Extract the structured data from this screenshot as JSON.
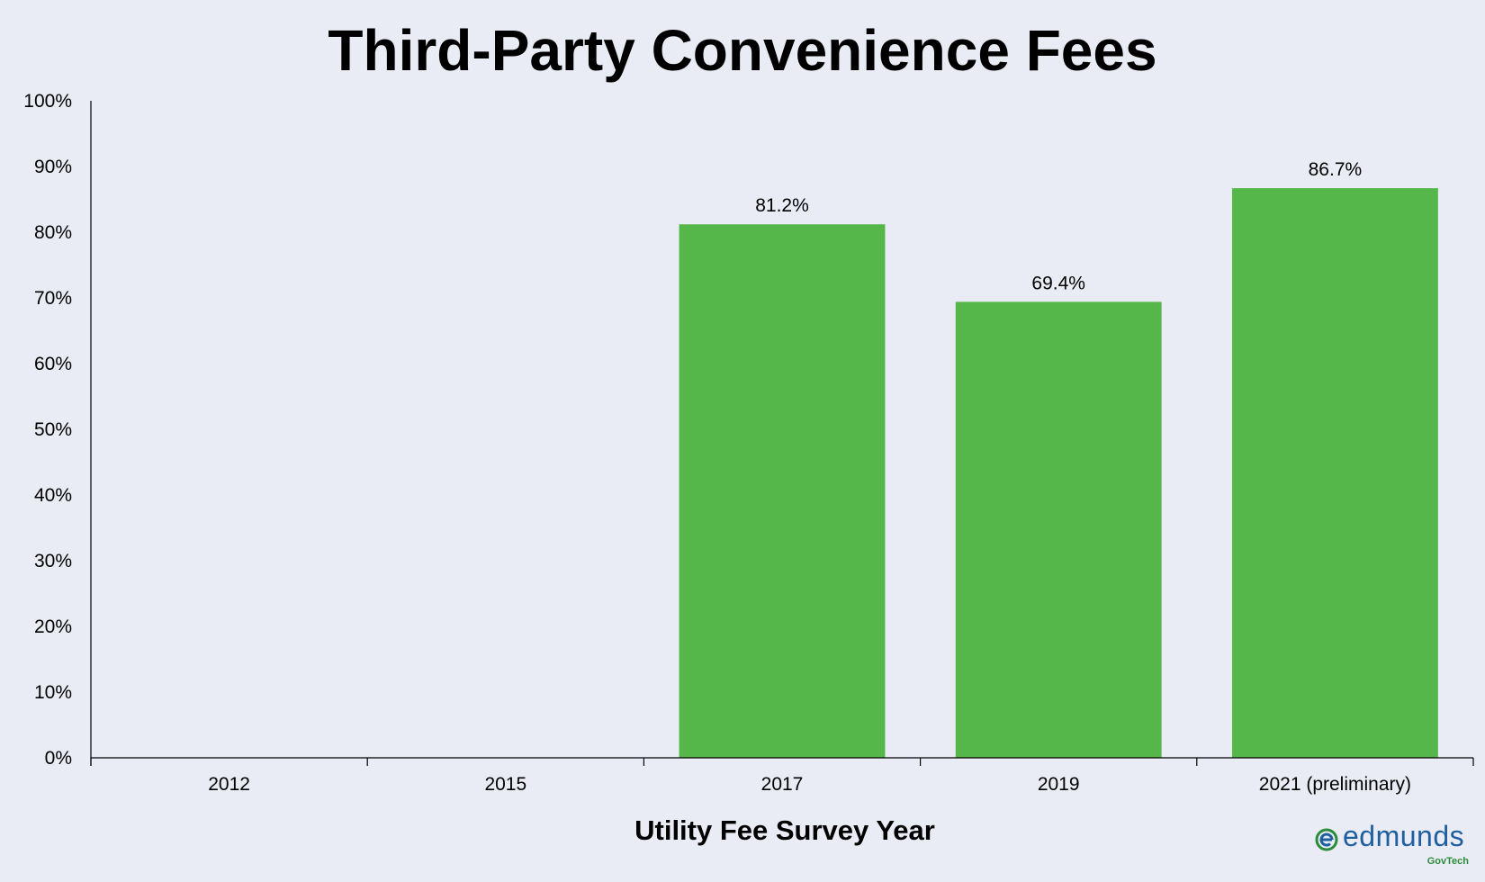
{
  "chart_data": {
    "type": "bar",
    "title": "Third-Party Convenience Fees",
    "xlabel": "Utility Fee Survey Year",
    "ylabel": "",
    "categories": [
      "2012",
      "2015",
      "2017",
      "2019",
      "2021 (preliminary)"
    ],
    "values": [
      null,
      null,
      81.2,
      69.4,
      86.7
    ],
    "data_labels": [
      "",
      "",
      "81.2%",
      "69.4%",
      "86.7%"
    ],
    "ylim": [
      0,
      100
    ],
    "yticks": [
      0,
      10,
      20,
      30,
      40,
      50,
      60,
      70,
      80,
      90,
      100
    ],
    "ytick_labels": [
      "0%",
      "10%",
      "20%",
      "30%",
      "40%",
      "50%",
      "60%",
      "70%",
      "80%",
      "90%",
      "100%"
    ],
    "grid": false,
    "bar_color": "#55b74a",
    "background_color": "#e9ecf4"
  },
  "logo": {
    "word": "edmunds",
    "sub": "GovTech",
    "icon": "edmunds-e-logo-icon"
  }
}
